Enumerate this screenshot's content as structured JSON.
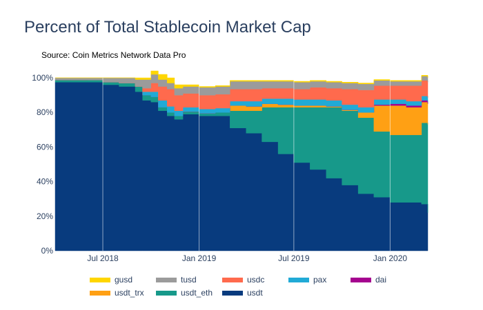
{
  "title": "Percent of Total Stablecoin Market Cap",
  "subtitle": "Source: Coin Metrics Network Data Pro",
  "chart_data": {
    "type": "area",
    "stacked": true,
    "stack_order_bottom_to_top": [
      "usdt",
      "usdt_eth",
      "usdt_trx",
      "dai",
      "pax",
      "usdc",
      "tusd",
      "gusd"
    ],
    "y_ticks": [
      "0%",
      "20%",
      "40%",
      "60%",
      "80%",
      "100%"
    ],
    "ylim": [
      0,
      100
    ],
    "x_ticks": [
      "Jul 2018",
      "Jan 2019",
      "Jul 2019",
      "Jan 2020"
    ],
    "x_tick_dates": [
      "2018-07-01",
      "2019-01-01",
      "2019-07-01",
      "2020-01-01"
    ],
    "xlim": [
      "2018-04-01",
      "2020-03-13"
    ],
    "grid": true,
    "legend_placement": "bottom",
    "x": [
      "2018-04-01",
      "2018-05-01",
      "2018-06-01",
      "2018-07-01",
      "2018-08-01",
      "2018-09-01",
      "2018-09-15",
      "2018-10-01",
      "2018-10-15",
      "2018-11-01",
      "2018-11-15",
      "2018-12-01",
      "2019-01-01",
      "2019-02-01",
      "2019-03-01",
      "2019-04-01",
      "2019-05-01",
      "2019-06-01",
      "2019-07-01",
      "2019-08-01",
      "2019-09-01",
      "2019-10-01",
      "2019-11-01",
      "2019-12-01",
      "2020-01-01",
      "2020-02-01",
      "2020-03-01",
      "2020-03-13"
    ],
    "series": [
      {
        "name": "usdt",
        "color": "#083b7e",
        "values": [
          97.5,
          97.5,
          97.5,
          96,
          95,
          92,
          87,
          86,
          81,
          78,
          76,
          79,
          78,
          78,
          71,
          68,
          63,
          56,
          51,
          47,
          42,
          38,
          33,
          31,
          28,
          28,
          27,
          22
        ]
      },
      {
        "name": "usdt_eth",
        "color": "#17998a",
        "values": [
          1.3,
          1.3,
          1.2,
          1.5,
          2,
          3,
          3,
          3,
          2,
          2,
          2,
          1.5,
          1.5,
          2,
          10,
          13,
          20,
          27,
          32,
          36,
          41,
          43,
          44,
          38,
          39,
          39,
          47,
          51
        ]
      },
      {
        "name": "usdt_trx",
        "color": "#ffa014",
        "values": [
          0,
          0,
          0,
          0,
          0,
          0,
          0,
          0,
          0,
          0,
          0,
          0,
          0,
          0,
          3,
          2.5,
          2,
          1.5,
          1,
          1,
          0.5,
          0.5,
          3,
          15,
          17,
          16,
          12,
          12
        ]
      },
      {
        "name": "dai",
        "color": "#a5048f",
        "values": [
          0,
          0,
          0,
          0,
          0,
          0,
          0,
          0,
          0,
          0,
          0,
          0,
          0,
          0,
          0,
          0,
          0,
          0,
          0,
          0,
          0,
          0,
          0,
          0.5,
          1,
          1,
          1,
          1
        ]
      },
      {
        "name": "pax",
        "color": "#21aad6",
        "values": [
          0,
          0,
          0,
          0,
          0,
          0,
          2,
          3,
          4,
          3.5,
          3,
          2.5,
          2.5,
          2.5,
          2.5,
          3,
          3,
          3.5,
          3.5,
          3.5,
          3.5,
          3,
          3,
          3,
          2.5,
          2.5,
          2.5,
          2.5
        ]
      },
      {
        "name": "usdc",
        "color": "#ff6a4d",
        "values": [
          0,
          0,
          0,
          0,
          0,
          0,
          2,
          5,
          8,
          10,
          9,
          8,
          8,
          8,
          7,
          7,
          6,
          6,
          6,
          7,
          7,
          9,
          10,
          8,
          8,
          9,
          9,
          9
        ]
      },
      {
        "name": "tusd",
        "color": "#9b9b9b",
        "values": [
          1.2,
          1.2,
          1.3,
          2.5,
          3,
          4,
          5,
          5,
          4,
          3.5,
          4,
          4,
          4.5,
          4.5,
          4.5,
          4.5,
          4,
          4,
          4,
          3.5,
          3.5,
          3.5,
          3.5,
          3,
          2.5,
          2.5,
          2.5,
          2.5
        ]
      },
      {
        "name": "gusd",
        "color": "#ffd600",
        "values": [
          0,
          0,
          0,
          0,
          0,
          1,
          1,
          2,
          3,
          3,
          2,
          1,
          0.5,
          0.5,
          0.5,
          0.5,
          0.5,
          0.5,
          0.5,
          0.5,
          0.5,
          0.5,
          0.5,
          0.5,
          0.5,
          0.5,
          0.5,
          0.5
        ]
      }
    ]
  },
  "legend": [
    {
      "name": "gusd",
      "color": "#ffd600"
    },
    {
      "name": "tusd",
      "color": "#9b9b9b"
    },
    {
      "name": "usdc",
      "color": "#ff6a4d"
    },
    {
      "name": "pax",
      "color": "#21aad6"
    },
    {
      "name": "dai",
      "color": "#a5048f"
    },
    {
      "name": "usdt_trx",
      "color": "#ffa014"
    },
    {
      "name": "usdt_eth",
      "color": "#17998a"
    },
    {
      "name": "usdt",
      "color": "#083b7e"
    }
  ]
}
